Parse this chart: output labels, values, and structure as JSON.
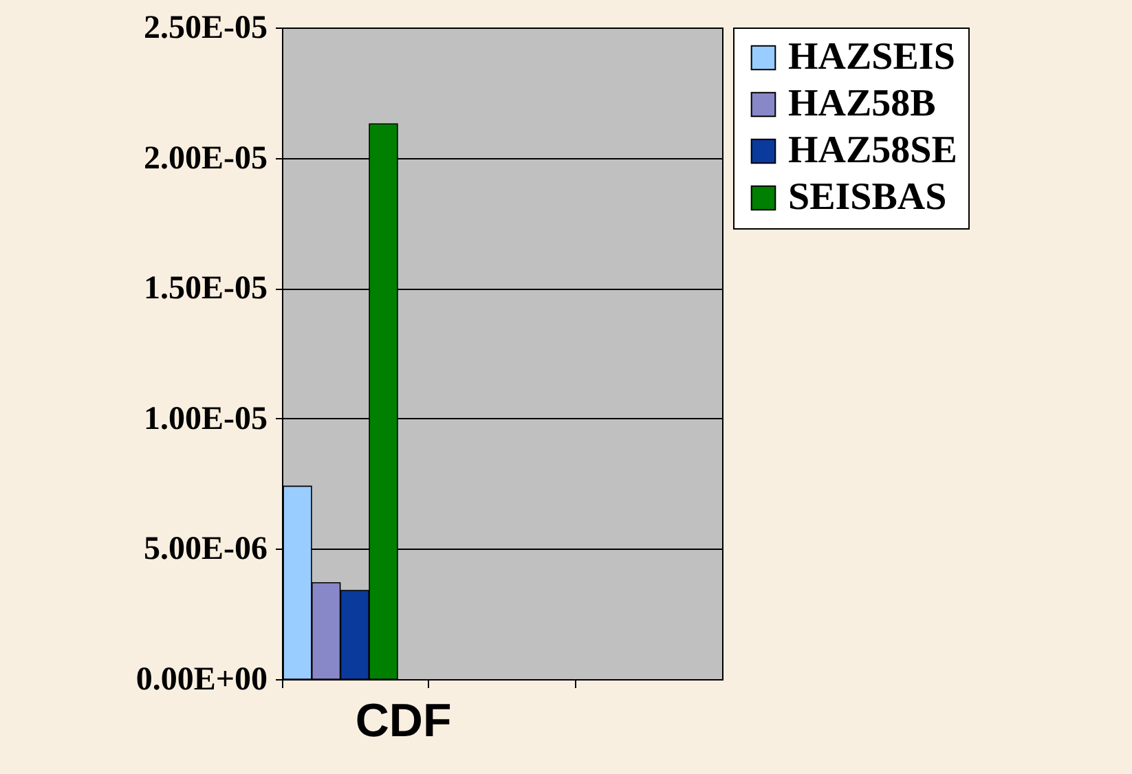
{
  "chart_data": {
    "type": "bar",
    "categories": [
      "CDF",
      null,
      null
    ],
    "series": [
      {
        "name": "HAZSEIS",
        "color": "#99ccff",
        "values": [
          7.4e-06,
          null,
          null
        ]
      },
      {
        "name": "HAZ58B",
        "color": "#8888c8",
        "values": [
          3.7e-06,
          null,
          null
        ]
      },
      {
        "name": "HAZ58SE",
        "color": "#0a3a9c",
        "values": [
          3.4e-06,
          null,
          null
        ]
      },
      {
        "name": "SEISBAS",
        "color": "#008000",
        "values": [
          2.13e-05,
          null,
          null
        ]
      }
    ],
    "ylim": [
      0,
      2.5e-05
    ],
    "yticks": [
      {
        "value": 0,
        "label": "0.00E+00"
      },
      {
        "value": 5e-06,
        "label": "5.00E-06"
      },
      {
        "value": 1e-05,
        "label": "1.00E-05"
      },
      {
        "value": 1.5e-05,
        "label": "1.50E-05"
      },
      {
        "value": 2e-05,
        "label": "2.00E-05"
      },
      {
        "value": 2.5e-05,
        "label": "2.50E-05"
      }
    ],
    "grid": "y",
    "legend": "right"
  }
}
